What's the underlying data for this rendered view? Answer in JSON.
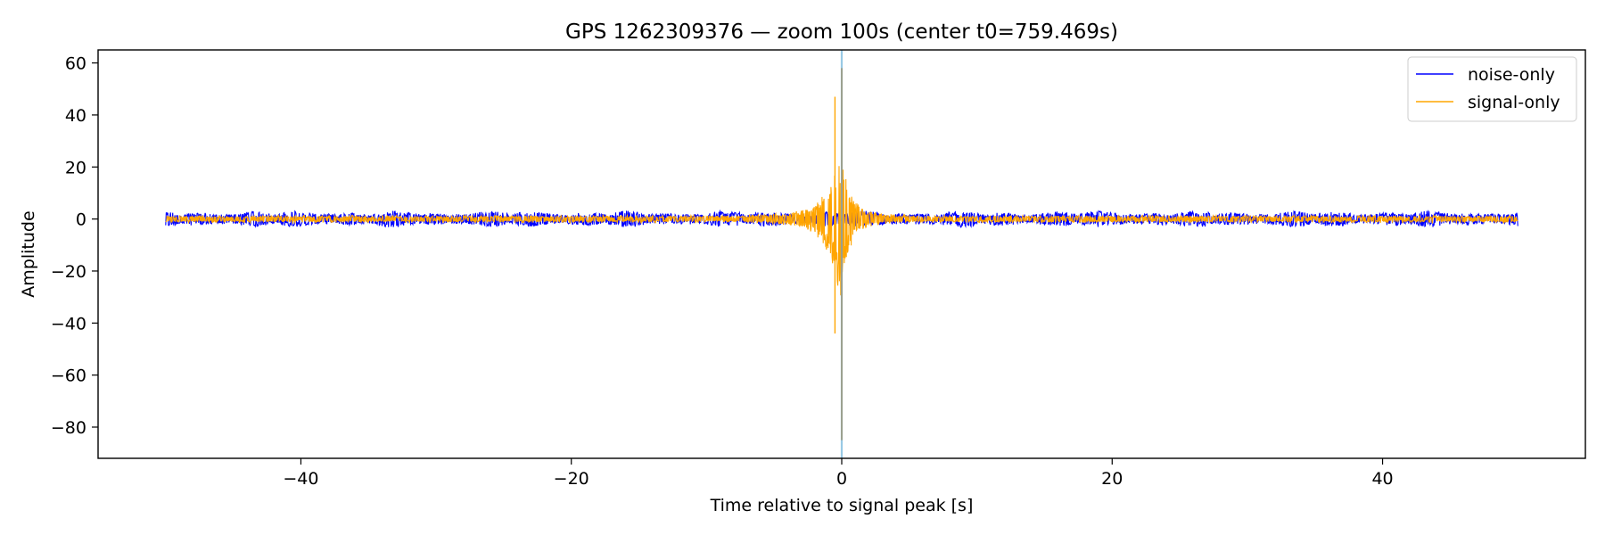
{
  "chart_data": {
    "type": "line",
    "title": "GPS 1262309376 — zoom 100s (center t0=759.469s)",
    "xlabel": "Time relative to signal peak [s]",
    "ylabel": "Amplitude",
    "xlim": [
      -55,
      55
    ],
    "ylim": [
      -92,
      65
    ],
    "xticks": [
      -40,
      -20,
      0,
      20,
      40
    ],
    "xtick_labels": [
      "−40",
      "−20",
      "0",
      "20",
      "40"
    ],
    "yticks": [
      60,
      40,
      20,
      0,
      -20,
      -40,
      -60,
      -80
    ],
    "ytick_labels": [
      "60",
      "40",
      "20",
      "0",
      "−20",
      "−40",
      "−60",
      "−80"
    ],
    "grid": false,
    "legend_position": "top-right",
    "peak_marker": {
      "x": 0,
      "color": "#87bfe0"
    },
    "series": [
      {
        "name": "noise-only",
        "color": "#0000ff",
        "x_range": [
          -50,
          50
        ],
        "envelope_amplitude": 2.5,
        "description_points": [
          {
            "x": -49,
            "y": 2.2
          },
          {
            "x": -45,
            "y": 2.5
          },
          {
            "x": -41,
            "y": 2.4
          },
          {
            "x": -35,
            "y": 2.8
          },
          {
            "x": -26,
            "y": 2.2
          },
          {
            "x": -22,
            "y": 2.8
          },
          {
            "x": -10,
            "y": 1.5
          },
          {
            "x": 6,
            "y": 2.6
          },
          {
            "x": 12,
            "y": 1.5
          },
          {
            "x": 27,
            "y": 2.4
          },
          {
            "x": 34,
            "y": 2.2
          },
          {
            "x": 46,
            "y": 1.8
          }
        ]
      },
      {
        "name": "signal-only",
        "color": "#ffa500",
        "x_range": [
          -50,
          50
        ],
        "background_amplitude": 1.5,
        "peak_max": 58,
        "peak_min": -85,
        "description_points": [
          {
            "x": -4,
            "y": 6
          },
          {
            "x": -2,
            "y": 12
          },
          {
            "x": -1,
            "y": 24
          },
          {
            "x": -0.5,
            "y": 47
          },
          {
            "x": -0.3,
            "y": -44
          },
          {
            "x": 0,
            "y": 58
          },
          {
            "x": 0.05,
            "y": -85
          },
          {
            "x": 1,
            "y": 16
          },
          {
            "x": 2,
            "y": 6
          },
          {
            "x": 4,
            "y": 2
          }
        ]
      }
    ]
  }
}
